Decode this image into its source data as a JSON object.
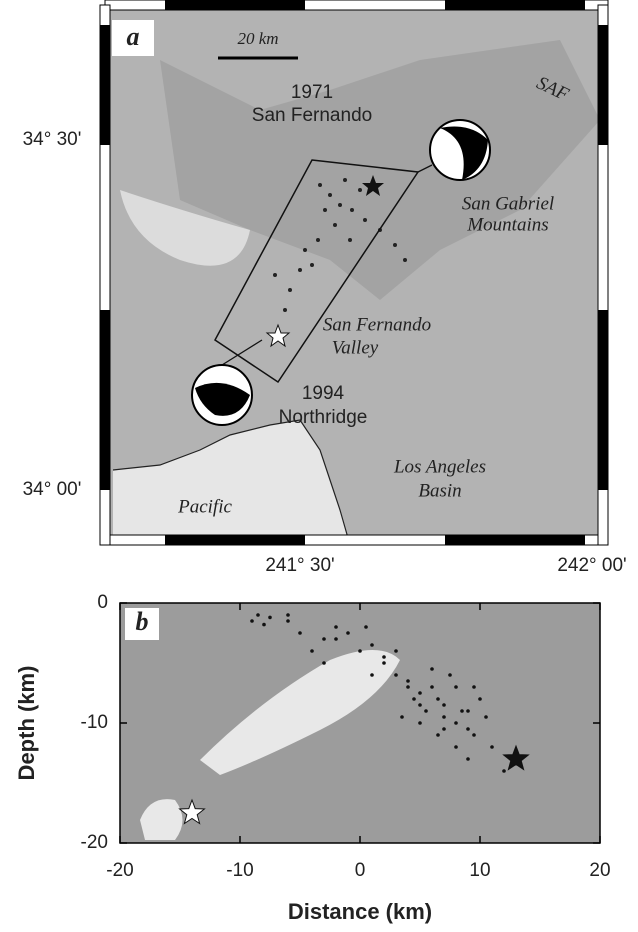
{
  "map": {
    "panel_label": "a",
    "scale_label": "20 km",
    "labels": [
      "1971",
      "San Fernando",
      "SAF",
      "San Gabriel",
      "Mountains",
      "San Fernando",
      "Valley",
      "1994",
      "Northridge",
      "Los Angeles",
      "Basin",
      "Pacific"
    ],
    "lat_labels": [
      "34° 30'",
      "34° 00'"
    ],
    "lon_labels": [
      "241° 30'",
      "242° 00'"
    ]
  },
  "chart_data": {
    "type": "scatter",
    "annotations": [
      "b"
    ],
    "x_label": "Distance (km)",
    "y_label": "Depth (km)",
    "xlim": [
      -20,
      20
    ],
    "ylim": [
      -20,
      0
    ],
    "xticks": [
      -20,
      -10,
      0,
      10,
      20
    ],
    "yticks": [
      -20,
      -10,
      0
    ],
    "series": [
      {
        "marker": "dot",
        "color": "#111111",
        "x": [
          -9,
          -8.5,
          -8,
          -7.5,
          -6,
          -5,
          -4,
          -3,
          -2,
          -1,
          0,
          1,
          2,
          3,
          4,
          4.5,
          5,
          5.5,
          6,
          6.5,
          7,
          7.5,
          8,
          8.5,
          9,
          9.5,
          10,
          3.5,
          4,
          5,
          6,
          7,
          8,
          9,
          -3,
          -2,
          1,
          2,
          11,
          12,
          -6,
          0.5,
          3,
          6.5,
          8,
          9.5,
          10.5,
          5,
          7,
          9
        ],
        "y": [
          -1.5,
          -1,
          -1.8,
          -1.2,
          -1.5,
          -2.5,
          -4,
          -3,
          -2,
          -2.5,
          -4,
          -3.5,
          -5,
          -6,
          -7,
          -8,
          -8.5,
          -9,
          -7,
          -8,
          -9.5,
          -6,
          -10,
          -9,
          -10.5,
          -11,
          -8,
          -9.5,
          -6.5,
          -10,
          -5.5,
          -8.5,
          -7,
          -9,
          -5,
          -3,
          -6,
          -4.5,
          -12,
          -14,
          -1,
          -2,
          -4,
          -11,
          -12,
          -7,
          -9.5,
          -7.5,
          -10.5,
          -13
        ]
      },
      {
        "marker": "star",
        "color": "#ffffff",
        "x": [
          -14
        ],
        "y": [
          -17.5
        ]
      },
      {
        "marker": "star",
        "color": "#111111",
        "x": [
          13
        ],
        "y": [
          -13
        ]
      }
    ]
  }
}
